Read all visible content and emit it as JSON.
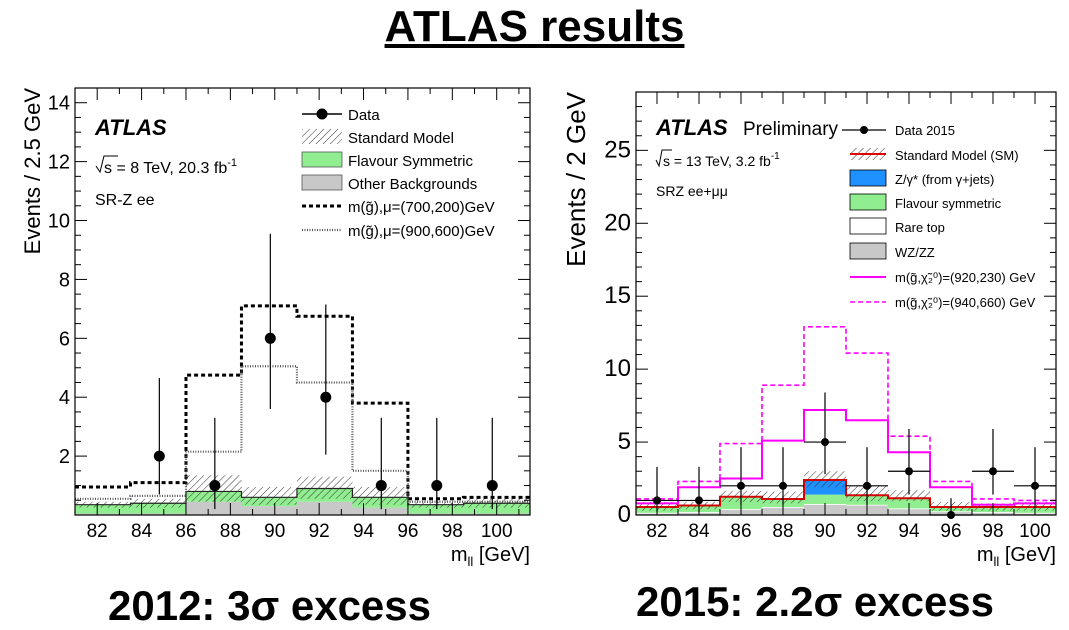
{
  "page": {
    "title": "ATLAS results",
    "caption_left": "2012: 3σ excess",
    "caption_right": "2015: 2.2σ excess"
  },
  "chart_data": [
    {
      "type": "bar",
      "ylabel": "Events / 2.5 GeV",
      "xlabel": "m_ll [GeV]",
      "xlim": [
        81,
        101.5
      ],
      "ylim": [
        0,
        14.5
      ],
      "xticks": [
        82,
        84,
        86,
        88,
        90,
        92,
        94,
        96,
        98,
        100
      ],
      "yticks": [
        2,
        4,
        6,
        8,
        10,
        12,
        14
      ],
      "annotations": {
        "experiment": "ATLAS",
        "energy_pre": "s = 8 TeV, 20.3 fb",
        "energy_sup": "-1",
        "region": "SR-Z ee"
      },
      "bin_edges": [
        81,
        83.5,
        86,
        88.5,
        91,
        93.5,
        96,
        98.5,
        101.5
      ],
      "stack": [
        {
          "name": "Other Backgrounds",
          "color": "#c8c8c8",
          "values": [
            0.05,
            0.05,
            0.45,
            0.3,
            0.45,
            0.25,
            0.05,
            0.05
          ]
        },
        {
          "name": "Flavour Symmetric",
          "color": "#90ee90",
          "values": [
            0.3,
            0.35,
            0.35,
            0.3,
            0.45,
            0.35,
            0.3,
            0.35
          ]
        }
      ],
      "sm_band": {
        "name": "Standard Model",
        "up": [
          0.45,
          0.55,
          1.35,
          0.95,
          1.3,
          0.95,
          0.45,
          0.55
        ],
        "down": [
          0.25,
          0.25,
          0.45,
          0.35,
          0.55,
          0.35,
          0.25,
          0.25
        ]
      },
      "signals": [
        {
          "name": "m(g̃),μ=(700,200)GeV",
          "style": "dashed",
          "values": [
            0.95,
            1.1,
            4.75,
            7.1,
            6.75,
            3.8,
            0.55,
            0.6
          ]
        },
        {
          "name": "m(g̃),μ=(900,600)GeV",
          "style": "dotted",
          "values": [
            0.55,
            0.65,
            2.15,
            5.05,
            4.5,
            1.5,
            0.45,
            0.45
          ]
        }
      ],
      "data": {
        "name": "Data",
        "x": [
          84.8,
          87.3,
          89.8,
          92.3,
          94.8,
          97.3,
          99.8
        ],
        "y": [
          2,
          1,
          6,
          4,
          1,
          1,
          1
        ],
        "err_up": [
          2.65,
          2.3,
          3.55,
          3.15,
          2.3,
          2.3,
          2.3
        ],
        "err_down": [
          1.3,
          0.8,
          2.4,
          1.95,
          0.8,
          0.8,
          0.8
        ]
      },
      "legend": {
        "position": "top-right",
        "entries": [
          "Data",
          "Standard Model",
          "Flavour Symmetric",
          "Other Backgrounds",
          "m(g̃),μ=(700,200)GeV",
          "m(g̃),μ=(900,600)GeV"
        ]
      }
    },
    {
      "type": "bar",
      "ylabel": "Events / 2 GeV",
      "xlabel": "m_ll [GeV]",
      "xlim": [
        81,
        101
      ],
      "ylim": [
        0,
        29
      ],
      "xticks": [
        82,
        84,
        86,
        88,
        90,
        92,
        94,
        96,
        98,
        100
      ],
      "yticks": [
        0,
        5,
        10,
        15,
        20,
        25
      ],
      "annotations": {
        "experiment": "ATLAS",
        "experiment_suffix": "Preliminary",
        "energy_pre": "s = 13 TeV, 3.2 fb",
        "energy_sup": "-1",
        "region": "SRZ ee+μμ"
      },
      "bin_edges": [
        81,
        83,
        85,
        87,
        89,
        91,
        93,
        95,
        97,
        99,
        101
      ],
      "stack": [
        {
          "name": "WZ/ZZ",
          "color": "#c8c8c8",
          "values": [
            0.1,
            0.15,
            0.35,
            0.5,
            0.7,
            0.65,
            0.4,
            0.2,
            0.15,
            0.1
          ]
        },
        {
          "name": "Rare top",
          "color": "#ffffff",
          "values": [
            0.05,
            0.05,
            0.05,
            0.05,
            0.05,
            0.05,
            0.05,
            0.05,
            0.05,
            0.05
          ]
        },
        {
          "name": "Flavour symmetric",
          "color": "#90ee90",
          "values": [
            0.4,
            0.45,
            0.85,
            0.55,
            0.65,
            0.65,
            0.7,
            0.3,
            0.35,
            0.4
          ]
        },
        {
          "name": "Z/γ* (from γ+jets)",
          "color": "#1e90ff",
          "values": [
            0.0,
            0.0,
            0.0,
            0.0,
            1.0,
            0.0,
            0.0,
            0.0,
            0.0,
            0.0
          ]
        }
      ],
      "sm_band": {
        "name": "Standard Model (SM)",
        "up": [
          0.9,
          0.9,
          1.65,
          1.6,
          3.0,
          2.0,
          1.7,
          0.9,
          0.8,
          0.9
        ],
        "down": [
          0.3,
          0.4,
          0.9,
          0.8,
          1.9,
          0.95,
          0.95,
          0.3,
          0.3,
          0.3
        ]
      },
      "signals": [
        {
          "name": "m(g̃,χ̃₂⁰)=(920,230) GeV",
          "style": "solid",
          "color": "#ff00ff",
          "values": [
            0.8,
            1.9,
            2.5,
            5.1,
            7.2,
            6.5,
            4.3,
            1.9,
            0.7,
            0.8
          ]
        },
        {
          "name": "m(g̃,χ̃₂⁰)=(940,660) GeV",
          "style": "dashed",
          "color": "#ff00ff",
          "values": [
            1.1,
            2.3,
            4.9,
            8.9,
            12.9,
            11.1,
            5.4,
            2.3,
            1.1,
            1.0
          ]
        }
      ],
      "data": {
        "name": "Data 2015",
        "x": [
          82,
          84,
          86,
          88,
          90,
          92,
          94,
          96,
          98,
          100
        ],
        "y": [
          1,
          1,
          2,
          2,
          5,
          2,
          3,
          0,
          3,
          2
        ],
        "err_up": [
          2.3,
          2.3,
          2.65,
          2.65,
          3.4,
          2.65,
          2.9,
          1.15,
          2.9,
          2.65
        ],
        "err_down": [
          0.8,
          0.8,
          1.3,
          1.3,
          2.2,
          1.3,
          1.6,
          0,
          1.6,
          1.3
        ]
      },
      "legend": {
        "position": "top-right",
        "entries": [
          "Data 2015",
          "Standard Model (SM)",
          "Z/γ* (from γ+jets)",
          "Flavour symmetric",
          "Rare top",
          "WZ/ZZ",
          "m(g̃,χ̃₂⁰)=(920,230) GeV",
          "m(g̃,χ̃₂⁰)=(940,660) GeV"
        ]
      }
    }
  ]
}
